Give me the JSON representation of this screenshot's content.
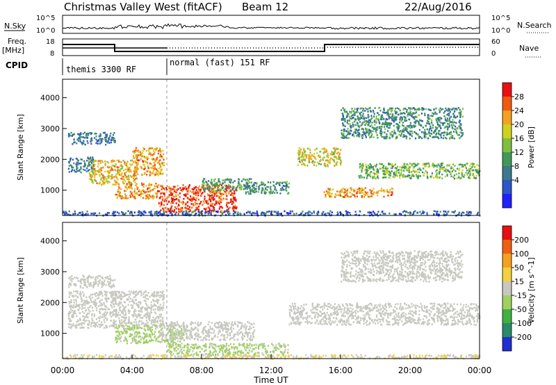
{
  "header": {
    "title": "Christmas Valley West (fitACF)",
    "beam": "Beam 12",
    "date": "22/Aug/2016"
  },
  "strips": {
    "nsky_label": "N.Sky",
    "nsearch_label": "N.Search",
    "nsky_ticks": [
      "10^5",
      "10^0"
    ],
    "nsearch_ticks": [
      "10^5",
      "10^0"
    ],
    "freq_label_1": "Freq.",
    "freq_label_2": "[MHz]",
    "freq_ticks": [
      "18",
      "8"
    ],
    "nave_label": "Nave",
    "nave_ticks": [
      "60",
      "0"
    ],
    "cpid_label": "CPID",
    "cpid_segments": [
      "themis 3300 RF",
      "normal (fast) 151 RF"
    ]
  },
  "chart_data": [
    {
      "type": "heatmap",
      "title": "",
      "xlabel": "Time UT",
      "ylabel": "Slant Range [km]",
      "xticks": [
        "00:00",
        "04:00",
        "08:00",
        "12:00",
        "16:00",
        "20:00",
        "00:00"
      ],
      "xlim_hours": [
        0,
        24
      ],
      "yticks": [
        "1000",
        "2000",
        "3000",
        "4000"
      ],
      "ylim": [
        180,
        4600
      ],
      "colorbar": {
        "label": "Power [dB]",
        "ticks": [
          "28",
          "24",
          "20",
          "16",
          "12",
          "8",
          "4"
        ],
        "range": [
          0,
          30
        ],
        "colors": [
          "#2020ff",
          "#2d56c8",
          "#3b7a8c",
          "#3f9a5a",
          "#7fbf3f",
          "#d0d020",
          "#f4a020",
          "#f05a10",
          "#e81010"
        ]
      },
      "echo_regions": [
        {
          "t0": 0.3,
          "t1": 3.0,
          "r0": 2500,
          "r1": 2900,
          "power": 8
        },
        {
          "t0": 0.3,
          "t1": 1.8,
          "r0": 1600,
          "r1": 2100,
          "power": 8
        },
        {
          "t0": 1.5,
          "t1": 4.3,
          "r0": 1200,
          "r1": 2000,
          "power": 20
        },
        {
          "t0": 4.0,
          "t1": 5.8,
          "r0": 1500,
          "r1": 2400,
          "power": 22
        },
        {
          "t0": 3.0,
          "t1": 5.5,
          "r0": 750,
          "r1": 1250,
          "power": 22
        },
        {
          "t0": 5.5,
          "t1": 10.0,
          "r0": 300,
          "r1": 1200,
          "power": 26
        },
        {
          "t0": 8.0,
          "t1": 11.0,
          "r0": 1000,
          "r1": 1400,
          "power": 12
        },
        {
          "t0": 10.5,
          "t1": 13.0,
          "r0": 900,
          "r1": 1300,
          "power": 10
        },
        {
          "t0": 13.5,
          "t1": 16.0,
          "r0": 1800,
          "r1": 2400,
          "power": 18
        },
        {
          "t0": 15.0,
          "t1": 19.0,
          "r0": 800,
          "r1": 1100,
          "power": 22
        },
        {
          "t0": 17.0,
          "t1": 24.0,
          "r0": 1400,
          "r1": 1900,
          "power": 14
        },
        {
          "t0": 16.0,
          "t1": 23.0,
          "r0": 2700,
          "r1": 3700,
          "power": 10
        },
        {
          "t0": 0.0,
          "t1": 24.0,
          "r0": 200,
          "r1": 350,
          "power": 6
        }
      ]
    },
    {
      "type": "heatmap",
      "title": "",
      "xlabel": "Time UT",
      "ylabel": "Slant Range [km]",
      "xticks": [
        "00:00",
        "04:00",
        "08:00",
        "12:00",
        "16:00",
        "20:00",
        "00:00"
      ],
      "xlim_hours": [
        0,
        24
      ],
      "yticks": [
        "1000",
        "2000",
        "3000",
        "4000"
      ],
      "ylim": [
        180,
        4600
      ],
      "colorbar": {
        "label": "Velocity [m s^-1]",
        "ticks": [
          "200",
          "100",
          "50",
          "15",
          "-15",
          "-50",
          "-100",
          "-200"
        ],
        "range": [
          -250,
          250
        ],
        "colors": [
          "#2030d0",
          "#2a8a6a",
          "#40b040",
          "#9fd060",
          "#c8c8c0",
          "#f4d040",
          "#f4a020",
          "#f06010",
          "#e81010"
        ]
      },
      "echo_regions": [
        {
          "t0": 0.3,
          "t1": 3.0,
          "r0": 2500,
          "r1": 2900,
          "velocity": 0
        },
        {
          "t0": 0.3,
          "t1": 5.8,
          "r0": 1200,
          "r1": 2400,
          "velocity": 0
        },
        {
          "t0": 3.0,
          "t1": 7.0,
          "r0": 700,
          "r1": 1300,
          "velocity": -40
        },
        {
          "t0": 5.5,
          "t1": 11.0,
          "r0": 800,
          "r1": 1400,
          "velocity": 0
        },
        {
          "t0": 6.0,
          "t1": 13.0,
          "r0": 300,
          "r1": 700,
          "velocity": -40
        },
        {
          "t0": 13.0,
          "t1": 24.0,
          "r0": 1300,
          "r1": 2000,
          "velocity": 0
        },
        {
          "t0": 16.0,
          "t1": 23.0,
          "r0": 2700,
          "r1": 3700,
          "velocity": 0
        },
        {
          "t0": 0.0,
          "t1": 24.0,
          "r0": 200,
          "r1": 330,
          "velocity": 25
        }
      ]
    }
  ]
}
